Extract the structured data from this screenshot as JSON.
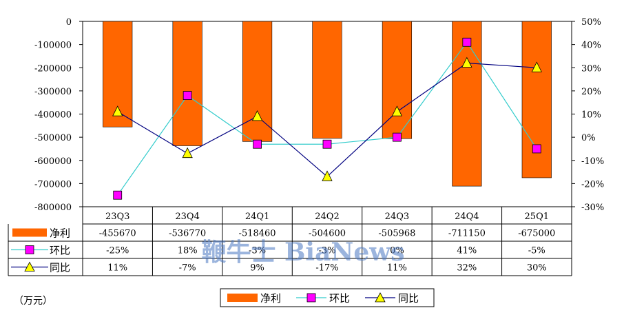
{
  "chart_data": {
    "type": "bar",
    "categories": [
      "23Q3",
      "23Q4",
      "24Q1",
      "24Q2",
      "24Q3",
      "24Q4",
      "25Q1"
    ],
    "series": [
      {
        "name": "净利",
        "kind": "bar",
        "axis": "left",
        "color": "#FF6600",
        "values": [
          -455670,
          -536770,
          -518460,
          -504600,
          -505968,
          -711150,
          -675000
        ],
        "labels": [
          "-455670",
          "-536770",
          "-518460",
          "-504600",
          "-505968",
          "-711150",
          "-675000"
        ]
      },
      {
        "name": "环比",
        "kind": "line",
        "axis": "right",
        "color": "#33CCCC",
        "marker": "square",
        "marker_color": "#FF00FF",
        "values": [
          -25,
          18,
          -3,
          -3,
          0,
          41,
          -5
        ],
        "labels": [
          "-25%",
          "18%",
          "-3%",
          "-3%",
          "0%",
          "41%",
          "-5%"
        ]
      },
      {
        "name": "同比",
        "kind": "line",
        "axis": "right",
        "color": "#000080",
        "marker": "triangle",
        "marker_color": "#FFFF00",
        "values": [
          11,
          -7,
          9,
          -17,
          11,
          32,
          30
        ],
        "labels": [
          "11%",
          "-7%",
          "9%",
          "-17%",
          "11%",
          "32%",
          "30%"
        ]
      }
    ],
    "y_left": {
      "ylim": [
        -800000,
        0
      ],
      "ticks": [
        "0",
        "-100000",
        "-200000",
        "-300000",
        "-400000",
        "-500000",
        "-600000",
        "-700000",
        "-800000"
      ]
    },
    "y_right": {
      "ylim": [
        -30,
        50
      ],
      "ticks": [
        "50%",
        "40%",
        "30%",
        "20%",
        "10%",
        "0%",
        "-10%",
        "-20%",
        "-30%"
      ]
    },
    "grid": false,
    "legend": "bottom",
    "data_table": true,
    "unit_label": "（万元）",
    "watermark": "鞭牛士 BiaNews"
  }
}
